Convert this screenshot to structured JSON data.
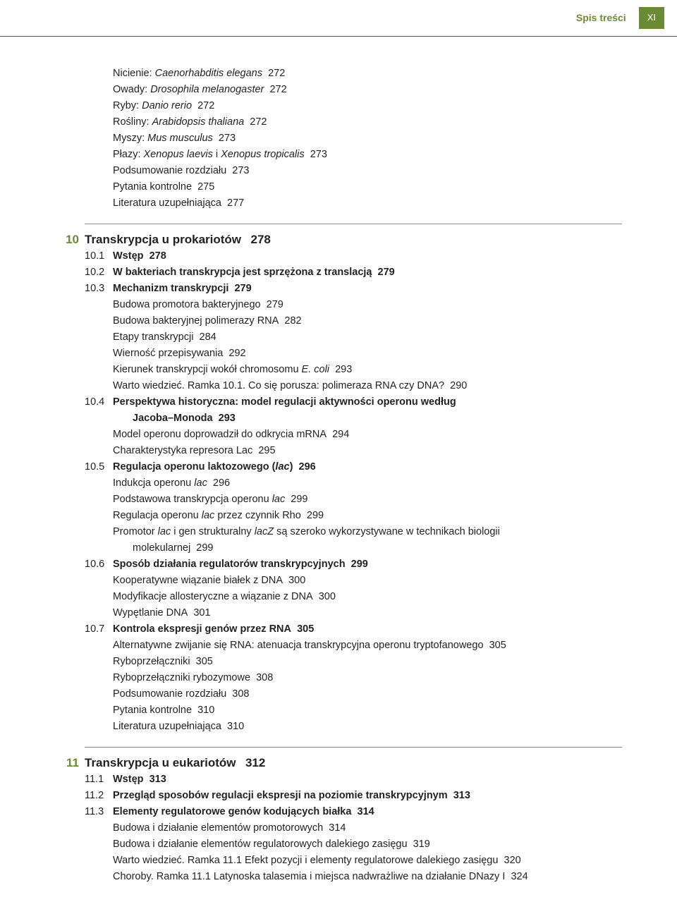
{
  "header": {
    "label": "Spis treści",
    "page_roman": "XI"
  },
  "pre_entries": [
    {
      "prefix": "Nicienie: ",
      "italic": "Caenorhabditis elegans",
      "page": "272"
    },
    {
      "prefix": "Owady: ",
      "italic": "Drosophila melanogaster",
      "page": "272"
    },
    {
      "prefix": "Ryby: ",
      "italic": "Danio rerio",
      "page": "272"
    },
    {
      "prefix": "Rośliny: ",
      "italic": "Arabidopsis thaliana",
      "page": "272"
    },
    {
      "prefix": "Myszy: ",
      "italic": "Mus musculus",
      "page": "273"
    },
    {
      "prefix": "Płazy: ",
      "italic": "Xenopus laevis",
      "mid": " i ",
      "italic2": "Xenopus tropicalis",
      "page": "273"
    },
    {
      "prefix": "Podsumowanie rozdziału",
      "page": "273"
    },
    {
      "prefix": "Pytania kontrolne",
      "page": "275"
    },
    {
      "prefix": "Literatura uzupełniająca",
      "page": "277"
    }
  ],
  "ch10": {
    "num": "10",
    "title": "Transkrypcja u prokariotów",
    "page": "278",
    "sections": [
      {
        "num": "10.1",
        "title": "Wstęp",
        "page": "278",
        "bold": true
      },
      {
        "num": "10.2",
        "title": "W bakteriach transkrypcja jest sprzężona z translacją",
        "page": "279",
        "bold": true
      },
      {
        "num": "10.3",
        "title": "Mechanizm transkrypcji",
        "page": "279",
        "bold": true,
        "subs": [
          {
            "text": "Budowa promotora bakteryjnego",
            "page": "279"
          },
          {
            "text": "Budowa bakteryjnej polimerazy RNA",
            "page": "282"
          },
          {
            "text": "Etapy transkrypcji",
            "page": "284"
          },
          {
            "text": "Wierność przepisywania",
            "page": "292"
          },
          {
            "prefix": "Kierunek transkrypcji wokół chromosomu ",
            "italic": "E. coli",
            "page": "293"
          },
          {
            "text": "Warto wiedzieć. Ramka 10.1. Co się porusza: polimeraza RNA czy DNA?",
            "page": "290"
          }
        ]
      },
      {
        "num": "10.4",
        "title": "Perspektywa historyczna: model regulacji aktywności operonu według",
        "bold": true,
        "cont_indent": "Jacoba–Monoda",
        "cont_page": "293",
        "subs": [
          {
            "text": "Model operonu doprowadził do odkrycia mRNA",
            "page": "294"
          },
          {
            "text": "Charakterystyka represora Lac",
            "page": "295"
          }
        ]
      },
      {
        "num": "10.5",
        "title_pre": "Regulacja operonu laktozowego (",
        "title_italic": "lac",
        "title_post": ")",
        "page": "296",
        "bold": true,
        "subs": [
          {
            "prefix": "Indukcja operonu ",
            "italic": "lac",
            "page": "296"
          },
          {
            "prefix": "Podstawowa transkrypcja operonu ",
            "italic": "lac",
            "page": "299"
          },
          {
            "prefix": "Regulacja operonu ",
            "italic": "lac",
            "suffix": " przez czynnik Rho",
            "page": "299"
          },
          {
            "prefix": "Promotor ",
            "italic": "lac",
            "mid": " i gen strukturalny ",
            "italic2": "lacZ",
            "suffix": " są szeroko wykorzystywane w technikach biologii",
            "cont": "molekularnej",
            "cont_page": "299"
          }
        ]
      },
      {
        "num": "10.6",
        "title": "Sposób działania regulatorów transkrypcyjnych",
        "page": "299",
        "bold": true,
        "subs": [
          {
            "text": "Kooperatywne wiązanie białek z DNA",
            "page": "300"
          },
          {
            "text": "Modyfikacje allosteryczne a wiązanie z DNA",
            "page": "300"
          },
          {
            "text": "Wypętlanie DNA",
            "page": "301"
          }
        ]
      },
      {
        "num": "10.7",
        "title": "Kontrola ekspresji genów przez RNA",
        "page": "305",
        "bold": true,
        "subs": [
          {
            "text": "Alternatywne zwijanie się RNA: atenuacja transkrypcyjna operonu tryptofanowego",
            "page": "305"
          },
          {
            "text": "Ryboprzełączniki",
            "page": "305"
          },
          {
            "text": "Ryboprzełączniki rybozymowe",
            "page": "308"
          },
          {
            "text": "Podsumowanie rozdziału",
            "page": "308"
          },
          {
            "text": "Pytania kontrolne",
            "page": "310"
          },
          {
            "text": "Literatura uzupełniająca",
            "page": "310"
          }
        ]
      }
    ]
  },
  "ch11": {
    "num": "11",
    "title": "Transkrypcja u eukariotów",
    "page": "312",
    "sections": [
      {
        "num": "11.1",
        "title": "Wstęp",
        "page": "313",
        "bold": true
      },
      {
        "num": "11.2",
        "title": "Przegląd sposobów regulacji ekspresji na poziomie transkrypcyjnym",
        "page": "313",
        "bold": true
      },
      {
        "num": "11.3",
        "title": "Elementy regulatorowe genów kodujących białka",
        "page": "314",
        "bold": true,
        "subs": [
          {
            "text": "Budowa i działanie elementów promotorowych",
            "page": "314"
          },
          {
            "text": "Budowa i działanie elementów regulatorowych dalekiego zasięgu",
            "page": "319"
          },
          {
            "text": "Warto wiedzieć. Ramka 11.1 Efekt pozycji i elementy regulatorowe dalekiego zasięgu",
            "page": "320"
          },
          {
            "text": "Choroby. Ramka 11.1 Latynoska talasemia i miejsca nadwrażliwe na działanie DNazy I",
            "page": "324"
          }
        ]
      }
    ]
  }
}
